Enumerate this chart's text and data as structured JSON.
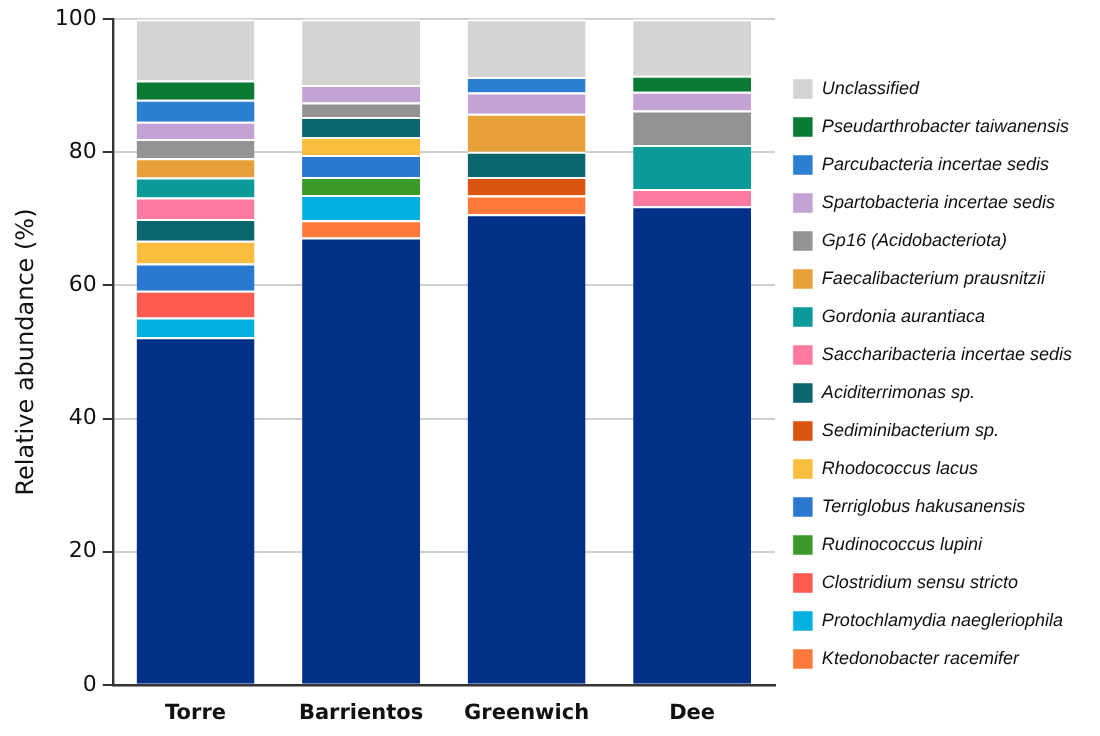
{
  "chart_data": {
    "type": "bar",
    "stacked": true,
    "ylabel": "Relative abundance (%)",
    "categories": [
      "Torre",
      "Barrientos",
      "Greenwich",
      "Dee"
    ],
    "ylim": [
      0,
      100
    ],
    "yticks": [
      0,
      20,
      40,
      60,
      80,
      100
    ],
    "grid": "y",
    "legend": "right",
    "series": [
      {
        "color": "#003087",
        "values": [
          52.2,
          67.2,
          70.7,
          71.9
        ]
      },
      {
        "name": "Ktedonobacter racemifer",
        "color": "#ff7a3a",
        "values": [
          null,
          2.6,
          2.8,
          null
        ]
      },
      {
        "name": "Protochlamydia naegleriophila",
        "color": "#00b0e0",
        "values": [
          3.0,
          3.8,
          null,
          null
        ]
      },
      {
        "name": "Clostridium sensu stricto",
        "color": "#ff5a50",
        "values": [
          4.0,
          null,
          null,
          null
        ]
      },
      {
        "name": "Rudinococcus lupini",
        "color": "#3c9a2a",
        "values": [
          null,
          2.7,
          null,
          null
        ]
      },
      {
        "name": "Terriglobus hakusanensis",
        "color": "#2a78d0",
        "values": [
          4.1,
          3.3,
          null,
          null
        ]
      },
      {
        "name": "Rhodococcus lacus",
        "color": "#fbbd3e",
        "values": [
          3.4,
          2.7,
          null,
          null
        ]
      },
      {
        "name": "Sediminibacterium sp.",
        "color": "#d8540f",
        "values": [
          null,
          null,
          2.8,
          null
        ]
      },
      {
        "name": "Aciditerrimonas sp.",
        "color": "#0b6670",
        "values": [
          3.3,
          3.0,
          3.8,
          null
        ]
      },
      {
        "name": "Saccharibacteria incertae sedis",
        "color": "#ff7aa0",
        "values": [
          3.2,
          null,
          null,
          2.6
        ]
      },
      {
        "name": "Gordonia aurantiaca",
        "color": "#0a9a9a",
        "values": [
          3.0,
          null,
          null,
          6.6
        ]
      },
      {
        "name": "Faecalibacterium prausnitzii",
        "color": "#e8a13a",
        "values": [
          2.9,
          null,
          5.7,
          null
        ]
      },
      {
        "name": "Gp16 (Acidobacteriota)",
        "color": "#939393",
        "values": [
          2.9,
          2.2,
          null,
          5.2
        ]
      },
      {
        "name": "Spartobacteria incertae sedis",
        "color": "#c3a2d6",
        "values": [
          2.6,
          2.6,
          3.2,
          2.8
        ]
      },
      {
        "name": "Parcubacteria incertae sedis",
        "color": "#2a7fd0",
        "values": [
          3.3,
          null,
          2.3,
          null
        ]
      },
      {
        "name": "Pseudarthrobacter taiwanensis",
        "color": "#0a7a35",
        "values": [
          2.9,
          null,
          null,
          2.4
        ]
      },
      {
        "name": "Unclassified",
        "color": "#d4d4d4",
        "values": [
          9.2,
          9.9,
          8.7,
          8.5
        ]
      }
    ]
  }
}
